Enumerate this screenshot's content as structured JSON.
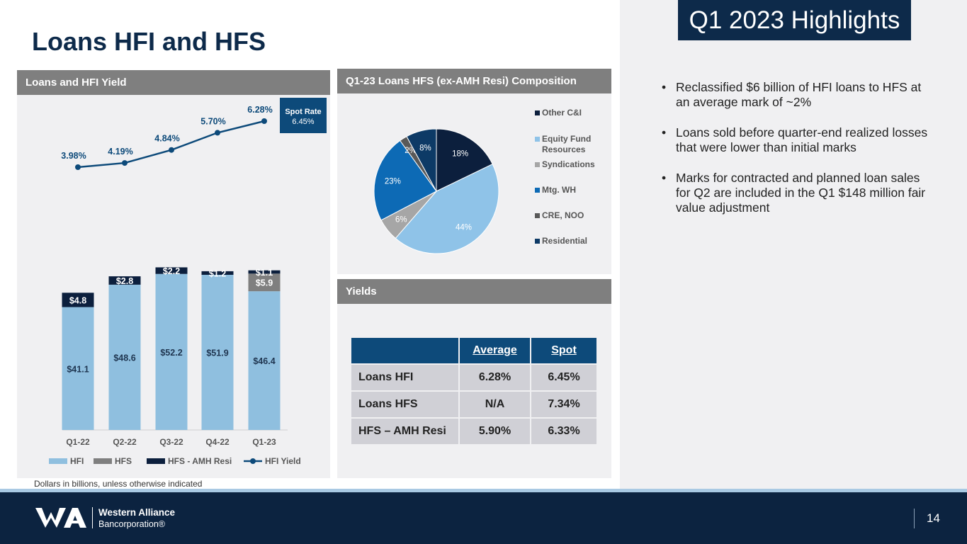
{
  "page": {
    "title": "Loans HFI and HFS",
    "footnote": "Dollars in billions, unless otherwise indicated",
    "page_number": "14"
  },
  "highlights": {
    "title": "Q1 2023 Highlights",
    "bullets": [
      "Reclassified $6 billion of HFI loans to HFS at an average mark of ~2%",
      "Loans sold before quarter-end realized losses that were lower than initial marks",
      "Marks for contracted and planned loan sales for Q2 are included in the Q1 $148 million fair value adjustment"
    ]
  },
  "spot_rate": {
    "label": "Spot Rate",
    "value": "6.45%"
  },
  "panels": {
    "loans": "Loans and HFI Yield",
    "pie": "Q1-23 Loans HFS (ex-AMH Resi) Composition",
    "yields": "Yields"
  },
  "yields_table": {
    "headers": [
      "",
      "Average",
      "Spot"
    ],
    "rows": [
      [
        "Loans HFI",
        "6.28%",
        "6.45%"
      ],
      [
        "Loans HFS",
        "N/A",
        "7.34%"
      ],
      [
        "HFS – AMH Resi",
        "5.90%",
        "6.33%"
      ]
    ]
  },
  "footer": {
    "company_line1": "Western Alliance",
    "company_line2": "Bancorporation®"
  },
  "colors": {
    "navy": "#0d2a4a",
    "hfi": "#8fbfdf",
    "hfs": "#7f7f7f",
    "amh": "#0c1f3d",
    "yield_line": "#0d4a7a"
  },
  "chart_data": [
    {
      "type": "bar",
      "title": "Loans and HFI Yield",
      "stacked": true,
      "categories": [
        "Q1-22",
        "Q2-22",
        "Q3-22",
        "Q4-22",
        "Q1-23"
      ],
      "series": [
        {
          "name": "HFI",
          "values": [
            41.1,
            48.6,
            52.2,
            51.9,
            46.4
          ],
          "labels": [
            "$41.1",
            "$48.6",
            "$52.2",
            "$51.9",
            "$46.4"
          ]
        },
        {
          "name": "HFS",
          "values": [
            0,
            0,
            0,
            0,
            5.9
          ],
          "labels": [
            "",
            "",
            "",
            "",
            "$5.9"
          ]
        },
        {
          "name": "HFS - AMH Resi",
          "values": [
            4.8,
            2.8,
            2.2,
            1.2,
            1.1
          ],
          "labels": [
            "$4.8",
            "$2.8",
            "$2.2",
            "$1.2",
            "$1.1"
          ]
        }
      ],
      "line_series": {
        "name": "HFI Yield",
        "values": [
          3.98,
          4.19,
          4.84,
          5.7,
          6.28
        ],
        "labels": [
          "3.98%",
          "4.19%",
          "4.84%",
          "5.70%",
          "6.28%"
        ]
      },
      "legend": [
        "HFI",
        "HFS",
        "HFS - AMH Resi",
        "HFI Yield"
      ],
      "legend_position": "bottom"
    },
    {
      "type": "pie",
      "title": "Q1-23 Loans HFS (ex-AMH Resi) Composition",
      "slices": [
        {
          "name": "Other C&I",
          "value": 18,
          "label": "18%",
          "color": "#0c1f3d"
        },
        {
          "name": "Equity Fund Resources",
          "value": 44,
          "label": "44%",
          "color": "#8fc3e8"
        },
        {
          "name": "Syndications",
          "value": 6,
          "label": "6%",
          "color": "#a6a6a6"
        },
        {
          "name": "Mtg. WH",
          "value": 23,
          "label": "23%",
          "color": "#0d6ab5"
        },
        {
          "name": "CRE, NOO",
          "value": 2,
          "label": "2%",
          "color": "#595959"
        },
        {
          "name": "Residential",
          "value": 8,
          "label": "8%",
          "color": "#0d3a66"
        }
      ],
      "legend_position": "right"
    }
  ]
}
